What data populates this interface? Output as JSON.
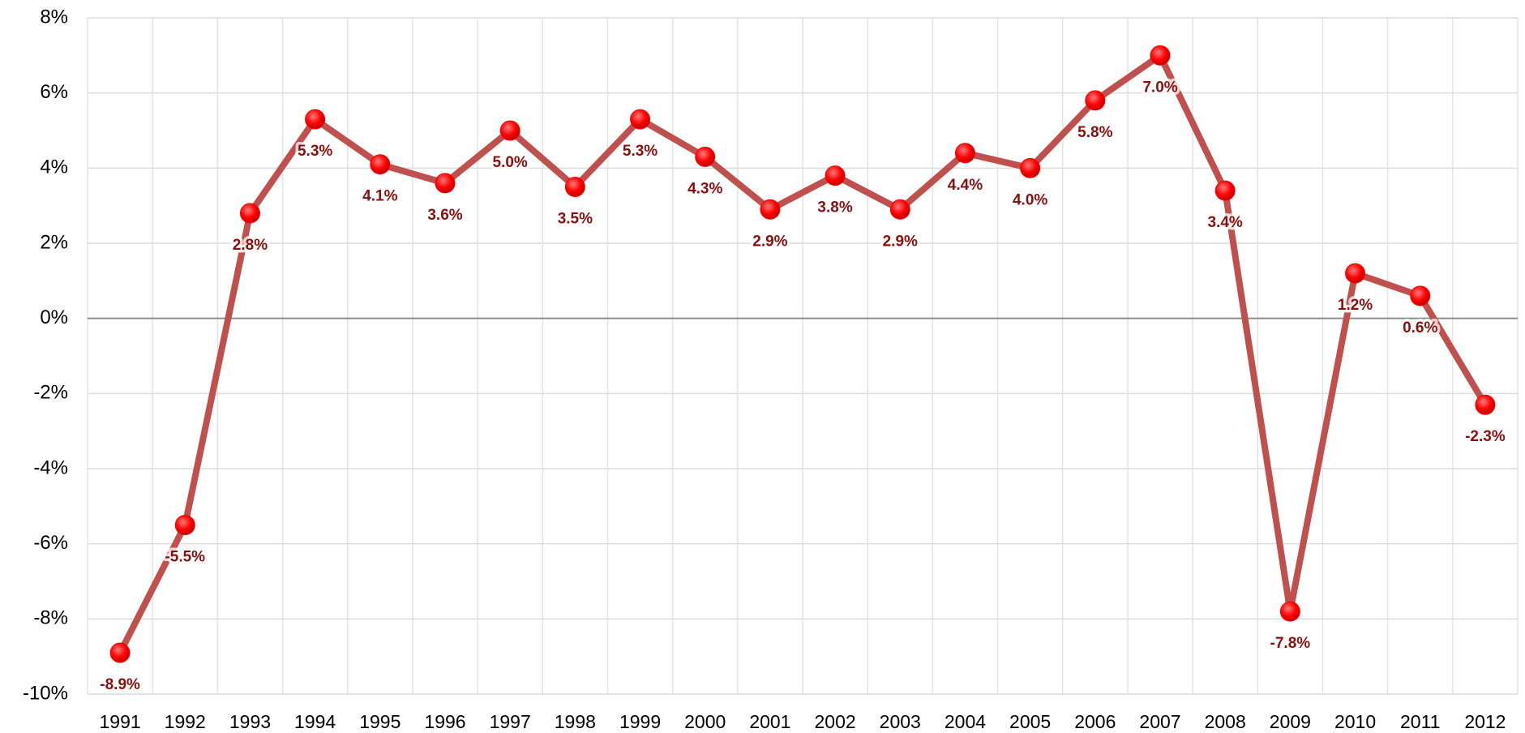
{
  "chart_data": {
    "type": "line",
    "categories": [
      "1991",
      "1992",
      "1993",
      "1994",
      "1995",
      "1996",
      "1997",
      "1998",
      "1999",
      "2000",
      "2001",
      "2002",
      "2003",
      "2004",
      "2005",
      "2006",
      "2007",
      "2008",
      "2009",
      "2010",
      "2011",
      "2012"
    ],
    "values": [
      -8.9,
      -5.5,
      2.8,
      5.3,
      4.1,
      3.6,
      5.0,
      3.5,
      5.3,
      4.3,
      2.9,
      3.8,
      2.9,
      4.4,
      4.0,
      5.8,
      7.0,
      3.4,
      -7.8,
      1.2,
      0.6,
      -2.3
    ],
    "value_labels": [
      "-8.9%",
      "-5.5%",
      "2.8%",
      "5.3%",
      "4.1%",
      "3.6%",
      "5.0%",
      "3.5%",
      "5.3%",
      "4.3%",
      "2.9%",
      "3.8%",
      "2.9%",
      "4.4%",
      "4.0%",
      "5.8%",
      "7.0%",
      "3.4%",
      "-7.8%",
      "1.2%",
      "0.6%",
      "-2.3%"
    ],
    "color": "#c0504d",
    "marker_color": "#ff0000",
    "label_color": "#8b0f0f",
    "ylim": [
      -10,
      8
    ],
    "yticks": [
      {
        "value": -10,
        "label": "-10%"
      },
      {
        "value": -8,
        "label": "-8%"
      },
      {
        "value": -6,
        "label": "-6%"
      },
      {
        "value": -4,
        "label": "-4%"
      },
      {
        "value": -2,
        "label": "-2%"
      },
      {
        "value": 0,
        "label": "0%"
      },
      {
        "value": 2,
        "label": "2%"
      },
      {
        "value": 4,
        "label": "4%"
      },
      {
        "value": 6,
        "label": "6%"
      },
      {
        "value": 8,
        "label": "8%"
      }
    ],
    "grid": true
  }
}
